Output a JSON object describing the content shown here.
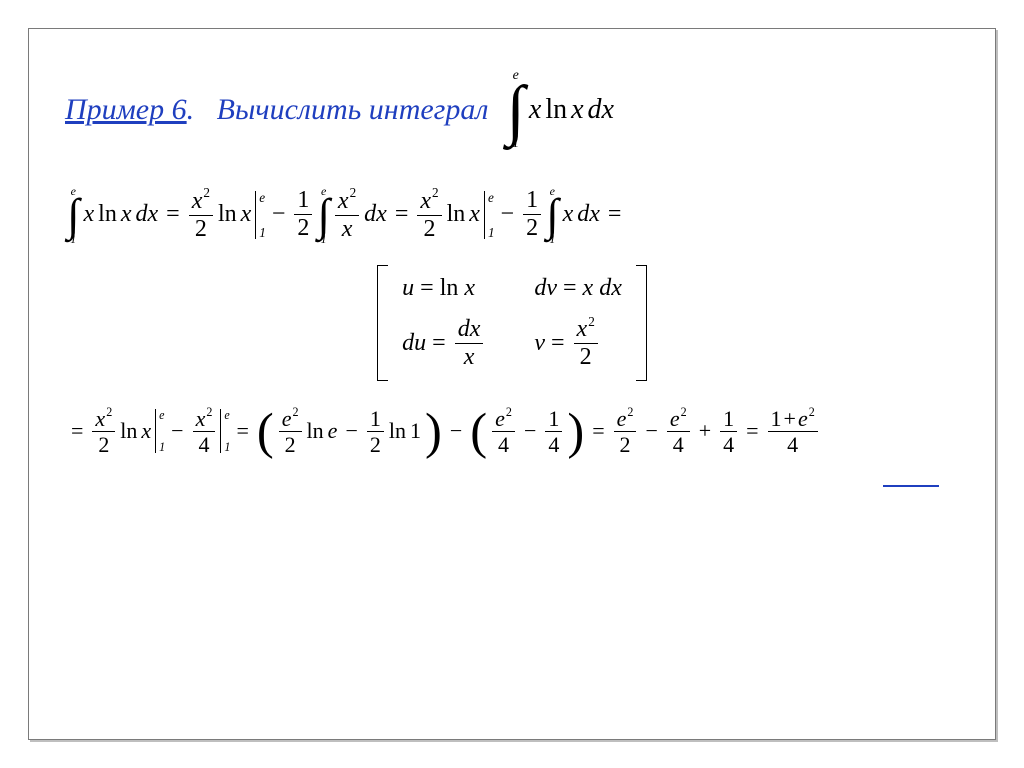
{
  "colors": {
    "heading": "#1f3fbf",
    "text": "#000000",
    "frame_border": "#7a7a7a",
    "frame_shadow": "#bfbfbf",
    "background": "#ffffff"
  },
  "typography": {
    "font_family": "Times New Roman, serif",
    "heading_size_pt": 22,
    "body_size_pt": 18,
    "style": "italic"
  },
  "heading": {
    "label": "Пример 6",
    "dot": ".",
    "task": "Вычислить интеграл"
  },
  "head_integral": {
    "lower": "1",
    "upper": "e",
    "integrand_x": "x",
    "integrand_ln": "ln",
    "integrand_x2": "x",
    "dx": "dx"
  },
  "line1": {
    "int": {
      "lower": "1",
      "upper": "e"
    },
    "integrand_x": "x",
    "ln": "ln",
    "integrand_x2": "x",
    "dx": "dx",
    "eq1": "=",
    "frac_x2_over_2_num": "x",
    "frac_x2_over_2_exp": "2",
    "frac_x2_over_2_den": "2",
    "ln2": "ln",
    "x_after_ln": "x",
    "eval1_upper": "e",
    "eval1_lower": "1",
    "minus1": "−",
    "half_num": "1",
    "half_den": "2",
    "int2": {
      "lower": "1",
      "upper": "e"
    },
    "frac2_num": "x",
    "frac2_num_exp": "2",
    "frac2_den": "x",
    "dx2": "dx",
    "eq2": "=",
    "ln3": "ln",
    "eval2_upper": "e",
    "eval2_lower": "1",
    "minus2": "−",
    "int3": {
      "lower": "1",
      "upper": "e"
    },
    "x_simple": "x",
    "dx3": "dx",
    "eq3": "="
  },
  "subs": {
    "u_lhs": "u",
    "u_eq": "=",
    "u_rhs_ln": "ln",
    "u_rhs_x": "x",
    "dv_lhs": "dv",
    "dv_eq": "=",
    "dv_rhs_x": "x",
    "dv_rhs_dx": "dx",
    "du_lhs": "du",
    "du_eq": "=",
    "du_num": "dx",
    "du_den": "x",
    "v_lhs": "v",
    "v_eq": "=",
    "v_num": "x",
    "v_num_exp": "2",
    "v_den": "2"
  },
  "line3": {
    "eq0": "=",
    "fracA_num": "x",
    "fracA_exp": "2",
    "fracA_den": "2",
    "lnA": "ln",
    "xA": "x",
    "evalA_upper": "e",
    "evalA_lower": "1",
    "minusA": "−",
    "fracB_num": "x",
    "fracB_exp": "2",
    "fracB_den": "4",
    "evalB_upper": "e",
    "evalB_lower": "1",
    "eq1": "=",
    "p1_frac1_num": "e",
    "p1_frac1_exp": "2",
    "p1_frac1_den": "2",
    "p1_ln": "ln",
    "p1_e": "e",
    "p1_minus": "−",
    "p1_half_num": "1",
    "p1_half_den": "2",
    "p1_ln2": "ln",
    "p1_one": "1",
    "minusP": "−",
    "p2_frac1_num": "e",
    "p2_frac1_exp": "2",
    "p2_frac1_den": "4",
    "p2_minus": "−",
    "p2_frac2_num": "1",
    "p2_frac2_den": "4",
    "eq2": "=",
    "t1_num": "e",
    "t1_exp": "2",
    "t1_den": "2",
    "t_minus": "−",
    "t2_num": "e",
    "t2_exp": "2",
    "t2_den": "4",
    "t_plus": "+",
    "t3_num": "1",
    "t3_den": "4",
    "eq3": "=",
    "ans_num_1": "1",
    "ans_plus": "+",
    "ans_num_e": "e",
    "ans_num_exp": "2",
    "ans_den": "4"
  }
}
